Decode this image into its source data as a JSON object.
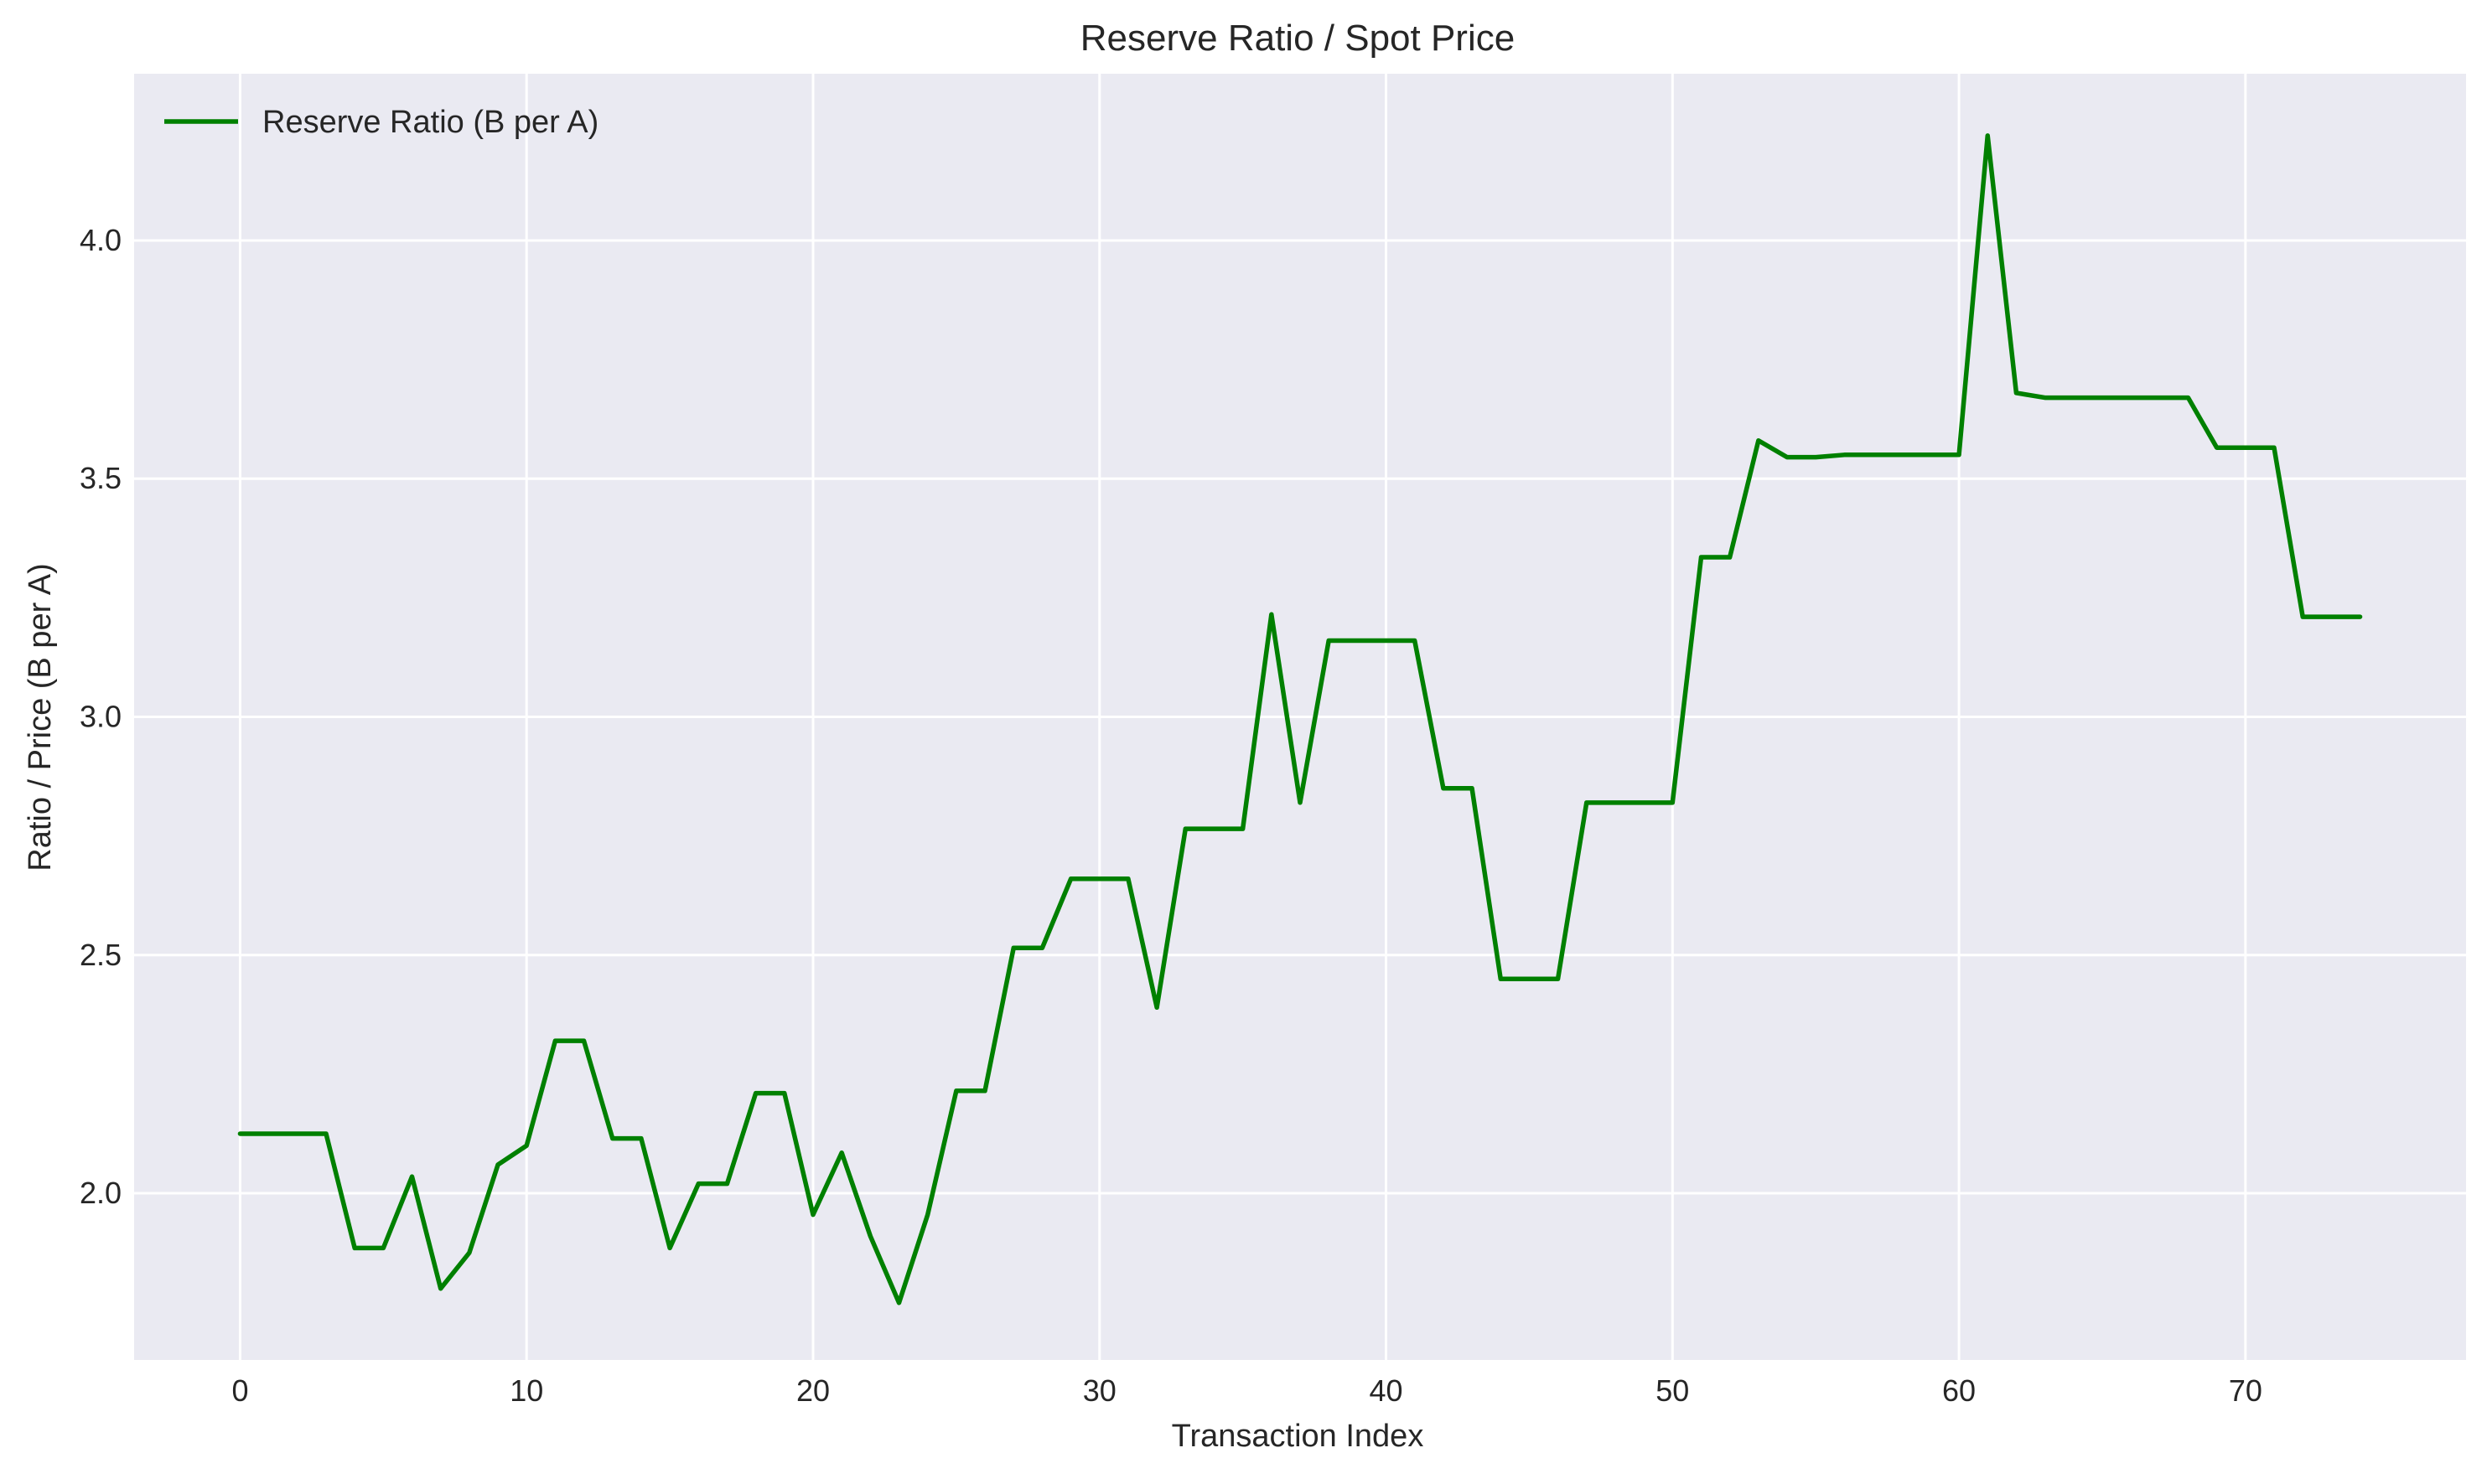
{
  "chart_data": {
    "type": "line",
    "title": "Reserve Ratio / Spot Price",
    "xlabel": "Transaction Index",
    "ylabel": "Ratio / Price (B per A)",
    "xlim": [
      -3.7,
      77.7
    ],
    "ylim": [
      1.65,
      4.35
    ],
    "xticks": [
      0,
      10,
      20,
      30,
      40,
      50,
      60,
      70
    ],
    "yticks": [
      2.0,
      2.5,
      3.0,
      3.5,
      4.0
    ],
    "xtick_labels": [
      "0",
      "10",
      "20",
      "30",
      "40",
      "50",
      "60",
      "70"
    ],
    "ytick_labels": [
      "2.0",
      "2.5",
      "3.0",
      "3.5",
      "4.0"
    ],
    "grid": true,
    "legend_position": "top-left",
    "colors": {
      "plot_background": "#eaeaf2",
      "grid": "#ffffff",
      "line": "#008000",
      "text": "#262626"
    },
    "series": [
      {
        "name": "Reserve Ratio (B per A)",
        "x": [
          0,
          1,
          2,
          3,
          4,
          5,
          6,
          7,
          8,
          9,
          10,
          11,
          12,
          13,
          14,
          15,
          16,
          17,
          18,
          19,
          20,
          21,
          22,
          23,
          24,
          25,
          26,
          27,
          28,
          29,
          30,
          31,
          32,
          33,
          34,
          35,
          36,
          37,
          38,
          39,
          40,
          41,
          42,
          43,
          44,
          45,
          46,
          47,
          48,
          49,
          50,
          51,
          52,
          53,
          54,
          55,
          56,
          57,
          58,
          59,
          60,
          61,
          62,
          63,
          64,
          65,
          66,
          67,
          68,
          69,
          70,
          71,
          72,
          73,
          74
        ],
        "values": [
          2.125,
          2.125,
          2.125,
          2.125,
          1.885,
          1.885,
          2.035,
          1.8,
          1.875,
          2.06,
          2.1,
          2.32,
          2.32,
          2.115,
          2.115,
          1.885,
          2.02,
          2.02,
          2.21,
          2.21,
          1.955,
          2.085,
          1.91,
          1.77,
          1.955,
          2.215,
          2.215,
          2.515,
          2.515,
          2.66,
          2.66,
          2.66,
          2.39,
          2.765,
          2.765,
          2.765,
          3.215,
          2.82,
          3.16,
          3.16,
          3.16,
          3.16,
          2.85,
          2.85,
          2.45,
          2.45,
          2.45,
          2.82,
          2.82,
          2.82,
          2.82,
          3.335,
          3.335,
          3.58,
          3.545,
          3.545,
          3.55,
          3.55,
          3.55,
          3.55,
          3.55,
          4.22,
          3.68,
          3.67,
          3.67,
          3.67,
          3.67,
          3.67,
          3.67,
          3.565,
          3.565,
          3.565,
          3.21,
          3.21,
          3.21
        ]
      }
    ]
  }
}
